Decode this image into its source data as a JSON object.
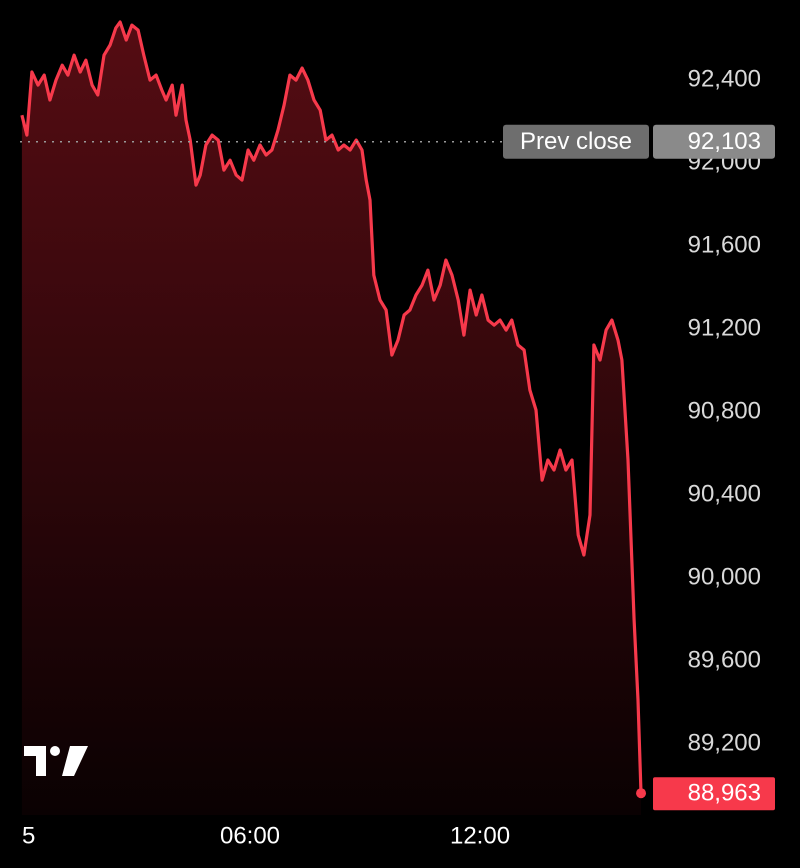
{
  "chart_data": {
    "type": "line",
    "x": [
      0.05,
      0.18,
      0.31,
      0.47,
      0.63,
      0.78,
      0.94,
      1.1,
      1.25,
      1.41,
      1.57,
      1.72,
      1.88,
      2.03,
      2.19,
      2.35,
      2.5,
      2.61,
      2.77,
      2.92,
      3.08,
      3.23,
      3.39,
      3.55,
      3.7,
      3.81,
      3.97,
      4.07,
      4.23,
      4.33,
      4.44,
      4.59,
      4.7,
      4.85,
      5.01,
      5.17,
      5.32,
      5.48,
      5.64,
      5.79,
      5.95,
      6.1,
      6.26,
      6.42,
      6.57,
      6.73,
      6.89,
      7.04,
      7.2,
      7.36,
      7.51,
      7.67,
      7.83,
      7.98,
      8.14,
      8.3,
      8.45,
      8.61,
      8.77,
      8.92,
      9.03,
      9.13,
      9.23,
      9.39,
      9.55,
      9.7,
      9.86,
      10.02,
      10.17,
      10.33,
      10.49,
      10.64,
      10.8,
      10.96,
      11.11,
      11.27,
      11.43,
      11.58,
      11.74,
      11.9,
      12.05,
      12.21,
      12.37,
      12.52,
      12.68,
      12.83,
      12.99,
      13.15,
      13.3,
      13.46,
      13.62,
      13.77,
      13.93,
      14.09,
      14.24,
      14.4,
      14.56,
      14.71,
      14.87,
      14.97,
      15.13,
      15.29,
      15.44,
      15.6,
      15.7,
      15.86,
      16.02,
      16.12,
      16.2
    ],
    "series": [
      {
        "color": "#f7394b",
        "values": [
          92231,
          92135,
          92439,
          92376,
          92424,
          92304,
          92400,
          92472,
          92424,
          92520,
          92439,
          92496,
          92376,
          92328,
          92520,
          92569,
          92651,
          92680,
          92593,
          92665,
          92641,
          92520,
          92400,
          92424,
          92352,
          92304,
          92376,
          92231,
          92376,
          92207,
          92111,
          91894,
          91942,
          92087,
          92135,
          92111,
          91966,
          92014,
          91942,
          91918,
          92063,
          92014,
          92087,
          92039,
          92063,
          92159,
          92280,
          92424,
          92400,
          92458,
          92400,
          92304,
          92255,
          92111,
          92135,
          92063,
          92087,
          92063,
          92111,
          92063,
          91918,
          91822,
          91460,
          91340,
          91292,
          91075,
          91147,
          91268,
          91292,
          91364,
          91412,
          91484,
          91340,
          91412,
          91533,
          91460,
          91340,
          91171,
          91388,
          91268,
          91364,
          91243,
          91219,
          91243,
          91195,
          91243,
          91123,
          91099,
          90906,
          90810,
          90472,
          90569,
          90521,
          90617,
          90521,
          90569,
          90207,
          90111,
          90304,
          91123,
          91051,
          91195,
          91243,
          91147,
          91051,
          90569,
          89798,
          89412,
          88963
        ]
      }
    ],
    "xlim": [
      0,
      16.4
    ],
    "xticks": [
      {
        "value": 0,
        "label": "5"
      },
      {
        "value": 6,
        "label": "06:00"
      },
      {
        "value": 12,
        "label": "12:00"
      }
    ],
    "ylim": [
      88858,
      92786
    ],
    "yticks": [
      {
        "value": 89200,
        "label": "89,200"
      },
      {
        "value": 89600,
        "label": "89,600"
      },
      {
        "value": 90000,
        "label": "90,000"
      },
      {
        "value": 90400,
        "label": "90,400"
      },
      {
        "value": 90800,
        "label": "90,800"
      },
      {
        "value": 91200,
        "label": "91,200"
      },
      {
        "value": 91600,
        "label": "91,600"
      },
      {
        "value": 92000,
        "label": "92,000"
      },
      {
        "value": 92400,
        "label": "92,400"
      }
    ],
    "prev_close": {
      "name": "Prev close",
      "value": 92103,
      "label": "92,103"
    },
    "last_price": {
      "value": 88963,
      "label": "88,963"
    }
  }
}
